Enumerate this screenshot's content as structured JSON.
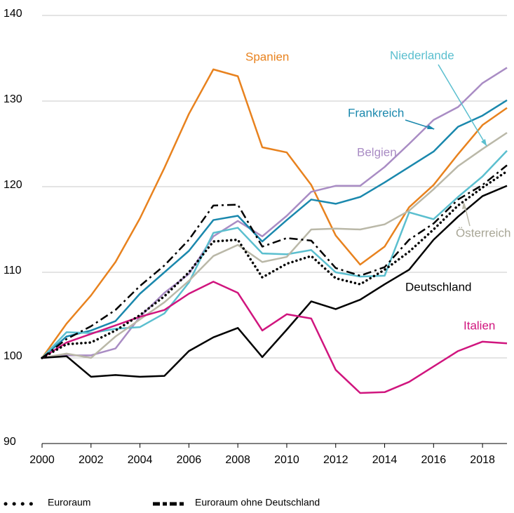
{
  "chart_data": {
    "type": "line",
    "x": [
      2000,
      2001,
      2002,
      2003,
      2004,
      2005,
      2006,
      2007,
      2008,
      2009,
      2010,
      2011,
      2012,
      2013,
      2014,
      2015,
      2016,
      2017,
      2018,
      2019
    ],
    "xlim": [
      2000,
      2019
    ],
    "xticks": [
      2000,
      2002,
      2004,
      2006,
      2008,
      2010,
      2012,
      2014,
      2016,
      2018
    ],
    "ylim": [
      90,
      140
    ],
    "yticks": [
      90,
      100,
      110,
      120,
      130,
      140
    ],
    "grid": true,
    "series": [
      {
        "name": "Spanien",
        "color": "#e8821e",
        "style": "solid",
        "values": [
          100,
          104,
          107.3,
          111.2,
          116.3,
          122.2,
          128.5,
          133.7,
          132.9,
          124.6,
          124.0,
          120.2,
          114.3,
          110.9,
          113.0,
          117.6,
          120.2,
          123.8,
          127.2,
          129.2
        ]
      },
      {
        "name": "Belgien",
        "color": "#a98cc4",
        "style": "solid",
        "values": [
          100,
          100.3,
          100.3,
          101.1,
          104.8,
          107.6,
          109.8,
          114.2,
          116.0,
          114.2,
          116.6,
          119.4,
          120.1,
          120.1,
          122.3,
          125.0,
          127.8,
          129.3,
          132.1,
          133.9
        ]
      },
      {
        "name": "Frankreich",
        "color": "#1a88ad",
        "style": "solid",
        "values": [
          100,
          102.5,
          103.2,
          104.3,
          107.5,
          110.0,
          112.5,
          116.1,
          116.6,
          113.6,
          116.1,
          118.5,
          118.0,
          118.8,
          120.5,
          122.3,
          124.1,
          127.0,
          128.3,
          130.1
        ]
      },
      {
        "name": "Niederlande",
        "color": "#5bbfcf",
        "style": "solid",
        "values": [
          100,
          103.0,
          102.9,
          103.4,
          103.6,
          105.2,
          108.8,
          114.6,
          115.2,
          112.2,
          112.1,
          112.6,
          110.0,
          109.5,
          109.6,
          117.0,
          116.2,
          118.8,
          121.2,
          124.2
        ]
      },
      {
        "name": "Österreich",
        "color": "#bab8a8",
        "style": "solid",
        "values": [
          100,
          100.5,
          100.0,
          102.5,
          104.5,
          106.5,
          109.0,
          111.9,
          113.2,
          111.2,
          111.8,
          115.0,
          115.1,
          115.0,
          115.6,
          117.2,
          119.7,
          122.4,
          124.4,
          126.3
        ]
      },
      {
        "name": "Deutschland",
        "color": "#000000",
        "style": "solid",
        "values": [
          100,
          100.2,
          97.8,
          98.0,
          97.8,
          97.9,
          100.8,
          102.4,
          103.5,
          100.1,
          103.3,
          106.6,
          105.7,
          106.8,
          108.6,
          110.3,
          113.8,
          116.5,
          118.9,
          120.1
        ]
      },
      {
        "name": "Italien",
        "color": "#d0157e",
        "style": "solid",
        "values": [
          100,
          101.8,
          102.8,
          103.8,
          104.8,
          105.6,
          107.5,
          108.9,
          107.6,
          103.2,
          105.1,
          104.6,
          98.6,
          95.9,
          96.0,
          97.2,
          99.0,
          100.8,
          101.9,
          101.7
        ]
      },
      {
        "name": "Euroraum",
        "color": "#000000",
        "style": "dotted",
        "values": [
          100,
          101.6,
          101.8,
          103.2,
          105.0,
          107.2,
          110.0,
          113.6,
          113.8,
          109.4,
          111.0,
          111.9,
          109.3,
          108.6,
          110.3,
          112.4,
          115.0,
          117.8,
          119.9,
          121.8
        ]
      },
      {
        "name": "Euroraum ohne Deutschland",
        "color": "#000000",
        "style": "dashdot",
        "values": [
          100,
          102.2,
          103.7,
          105.6,
          108.4,
          110.8,
          113.8,
          117.8,
          117.9,
          113.0,
          114.0,
          113.7,
          110.5,
          109.6,
          110.6,
          113.8,
          115.7,
          118.5,
          120.2,
          122.5
        ]
      }
    ]
  }
}
